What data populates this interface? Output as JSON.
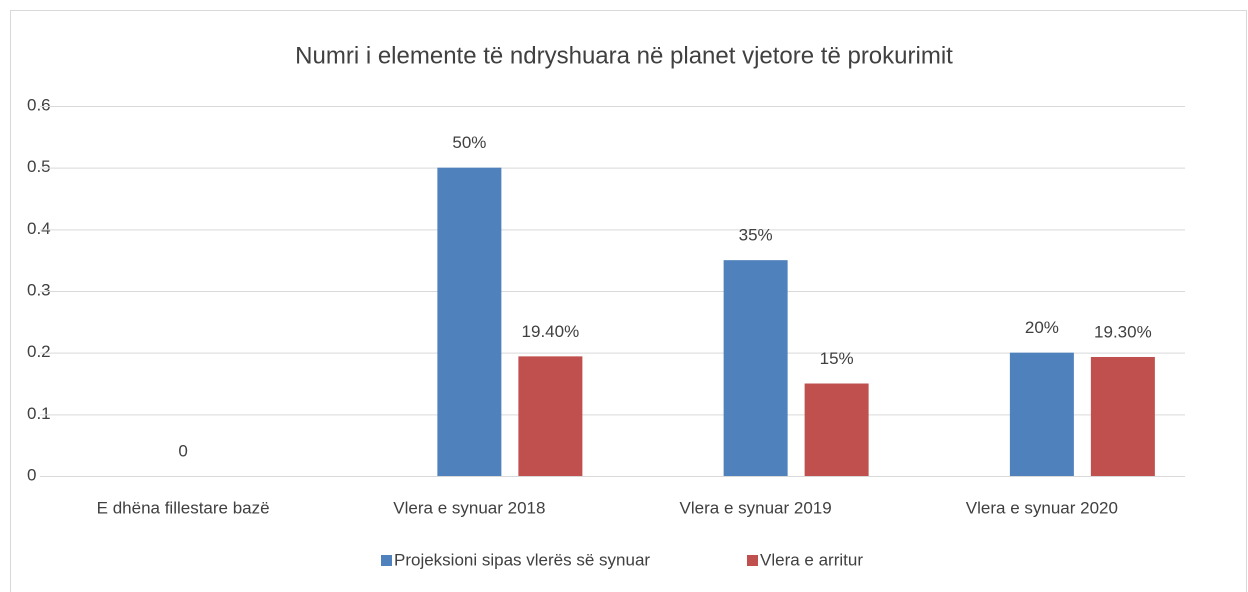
{
  "chart_data": {
    "type": "bar",
    "title": "Numri i elemente të ndryshuara në planet vjetore të prokurimit",
    "categories": [
      "E dhëna fillestare bazë",
      "Vlera e synuar 2018",
      "Vlera e synuar 2019",
      "Vlera e synuar 2020"
    ],
    "series": [
      {
        "name": "Projeksioni sipas vlerës së synuar",
        "color": "#4f81bd",
        "values": [
          0,
          0.5,
          0.35,
          0.2
        ],
        "value_labels": [
          "0",
          "50%",
          "35%",
          "20%"
        ]
      },
      {
        "name": "Vlera e arritur",
        "color": "#c0504d",
        "values": [
          null,
          0.194,
          0.15,
          0.193
        ],
        "value_labels": [
          null,
          "19.40%",
          "15%",
          "19.30%"
        ]
      }
    ],
    "ylim": [
      0,
      0.6
    ],
    "yticks": [
      0,
      0.1,
      0.2,
      0.3,
      0.4,
      0.5,
      0.6
    ],
    "grid": true,
    "legend": "bottom"
  }
}
